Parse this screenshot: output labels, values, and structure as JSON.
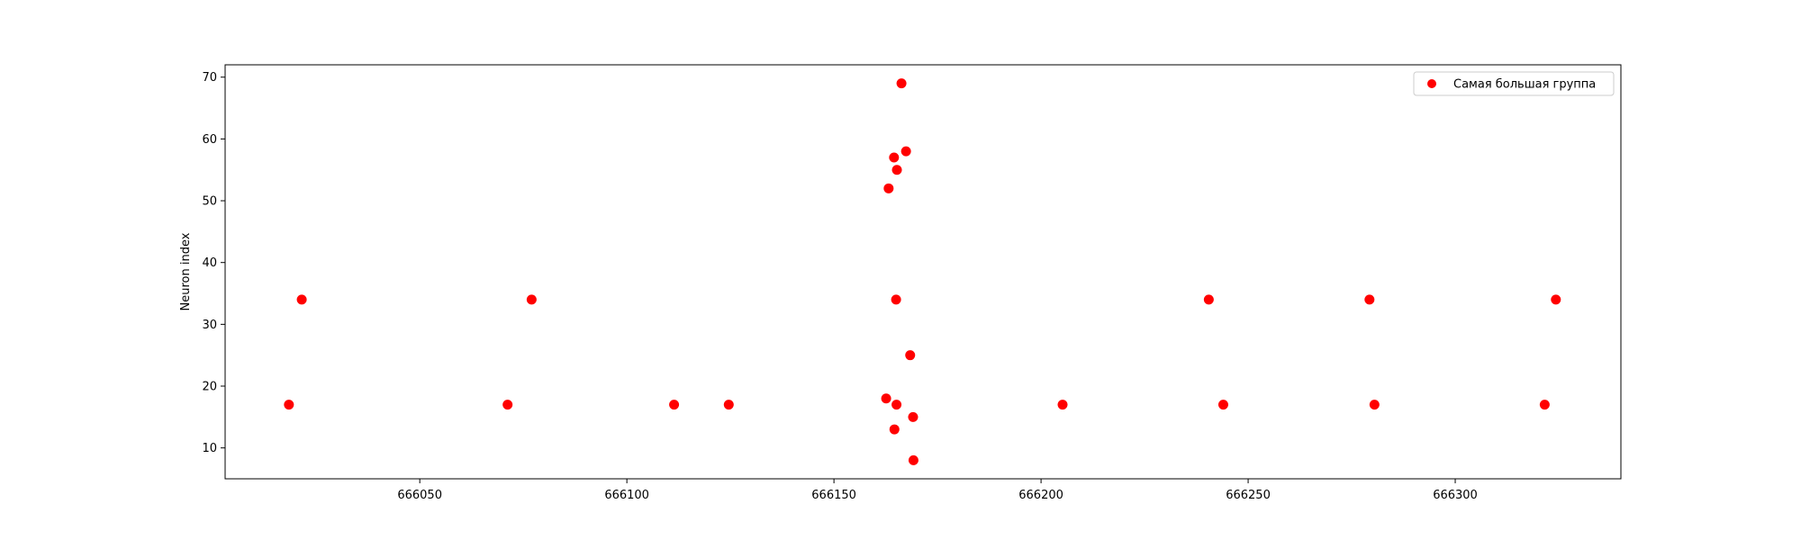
{
  "chart_data": {
    "type": "scatter",
    "title": "",
    "xlabel": "",
    "ylabel": "Neuron index",
    "xlim": [
      666003,
      666340
    ],
    "ylim": [
      5,
      72
    ],
    "xticks": [
      666050,
      666100,
      666150,
      666200,
      666250,
      666300
    ],
    "yticks": [
      10,
      20,
      30,
      40,
      50,
      60,
      70
    ],
    "grid": false,
    "legend_position": "top-right",
    "series": [
      {
        "name": "Самая большая группа",
        "color": "#ff0000",
        "points": [
          [
            666018.4,
            17
          ],
          [
            666021.5,
            34
          ],
          [
            666071.2,
            17
          ],
          [
            666077.0,
            34
          ],
          [
            666111.4,
            17
          ],
          [
            666124.6,
            17
          ],
          [
            666162.6,
            18
          ],
          [
            666163.2,
            52
          ],
          [
            666164.5,
            57
          ],
          [
            666164.6,
            13
          ],
          [
            666165.0,
            34
          ],
          [
            666165.1,
            17
          ],
          [
            666165.2,
            55
          ],
          [
            666166.3,
            69
          ],
          [
            666167.4,
            58
          ],
          [
            666168.4,
            25
          ],
          [
            666169.1,
            15
          ],
          [
            666169.2,
            8
          ],
          [
            666205.2,
            17
          ],
          [
            666240.5,
            34
          ],
          [
            666244.0,
            17
          ],
          [
            666279.3,
            34
          ],
          [
            666280.5,
            17
          ],
          [
            666321.6,
            17
          ],
          [
            666324.3,
            34
          ]
        ]
      }
    ]
  }
}
